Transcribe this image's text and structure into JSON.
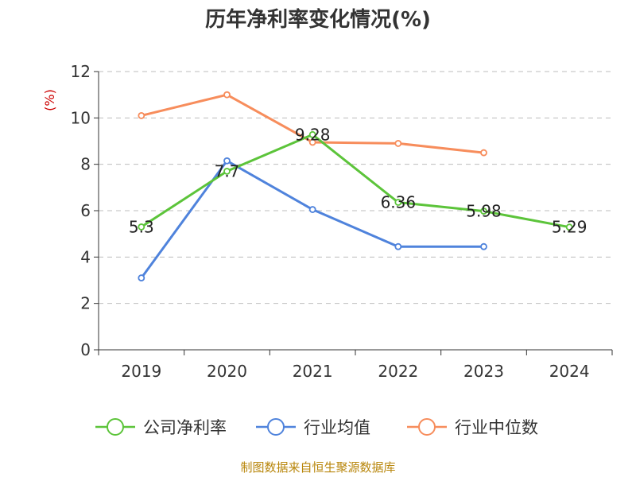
{
  "chart_data": {
    "type": "line",
    "title": "历年净利率变化情况(%)",
    "ylabel": "(%)",
    "categories": [
      "2019",
      "2020",
      "2021",
      "2022",
      "2023",
      "2024"
    ],
    "ylim": [
      0,
      12
    ],
    "yticks": [
      0,
      2,
      4,
      6,
      8,
      10,
      12
    ],
    "grid": true,
    "legend_position": "bottom",
    "series": [
      {
        "name": "公司净利率",
        "color": "#5cc43a",
        "values": [
          5.3,
          7.7,
          9.28,
          6.36,
          5.98,
          5.29
        ],
        "labels": [
          "5.3",
          "7.7",
          "9.28",
          "6.36",
          "5.98",
          "5.29"
        ]
      },
      {
        "name": "行业均值",
        "color": "#4f83dc",
        "values": [
          3.1,
          8.15,
          6.05,
          4.45,
          4.45,
          null
        ]
      },
      {
        "name": "行业中位数",
        "color": "#f78d5c",
        "values": [
          10.1,
          11.0,
          8.95,
          8.9,
          8.5,
          null
        ]
      }
    ]
  },
  "source_note": "制图数据来自恒生聚源数据库"
}
